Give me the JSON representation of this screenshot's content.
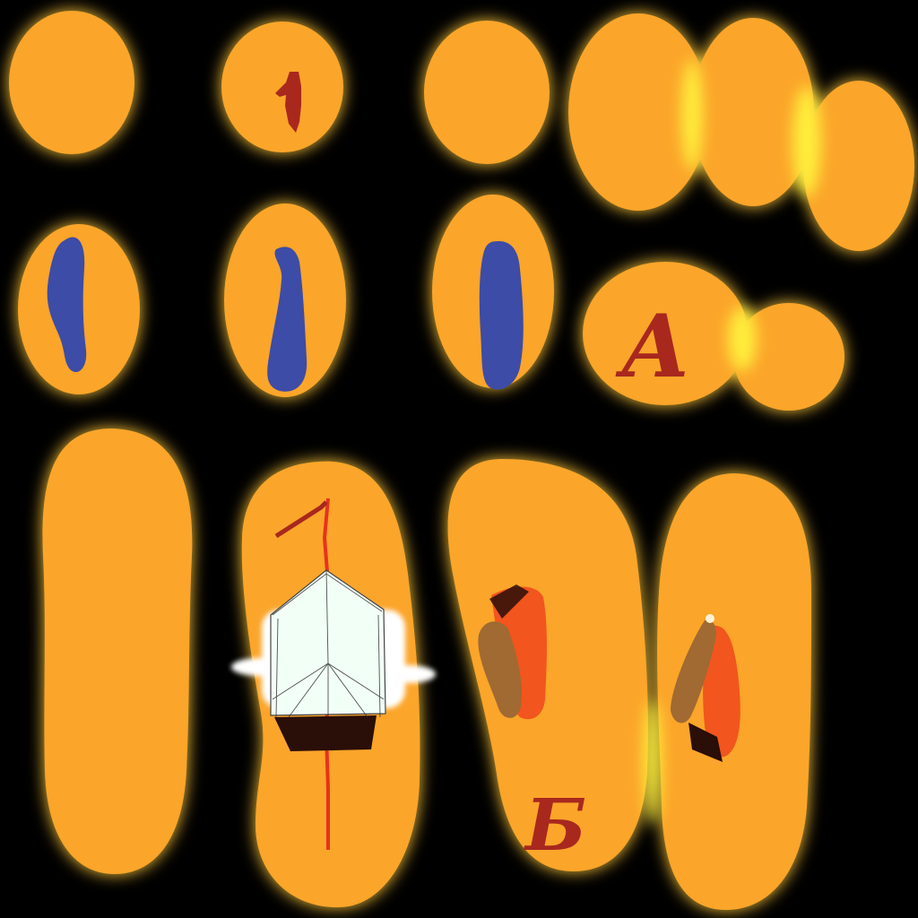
{
  "texture": {
    "background_color": "#000000",
    "blob_color": "#FBA52A",
    "glow_color": "#FFD54A",
    "seam_highlight_color": "#FFF23C",
    "marking_color_dark_red": "#A8281E",
    "marking_color_blue": "#3D4CA6",
    "marking_color_bright_red": "#E8321C",
    "marking_color_orange_red": "#F2551E",
    "marking_color_brown": "#A06A32",
    "panel_color_glass": "#F2FFF6",
    "panel_color_dark": "#2A0E08"
  },
  "labels": {
    "letter_a": "A",
    "letter_b": "Б"
  },
  "icons": {
    "shield_panel": "shield-sketch-icon",
    "number_one": "numeral-one-icon"
  }
}
